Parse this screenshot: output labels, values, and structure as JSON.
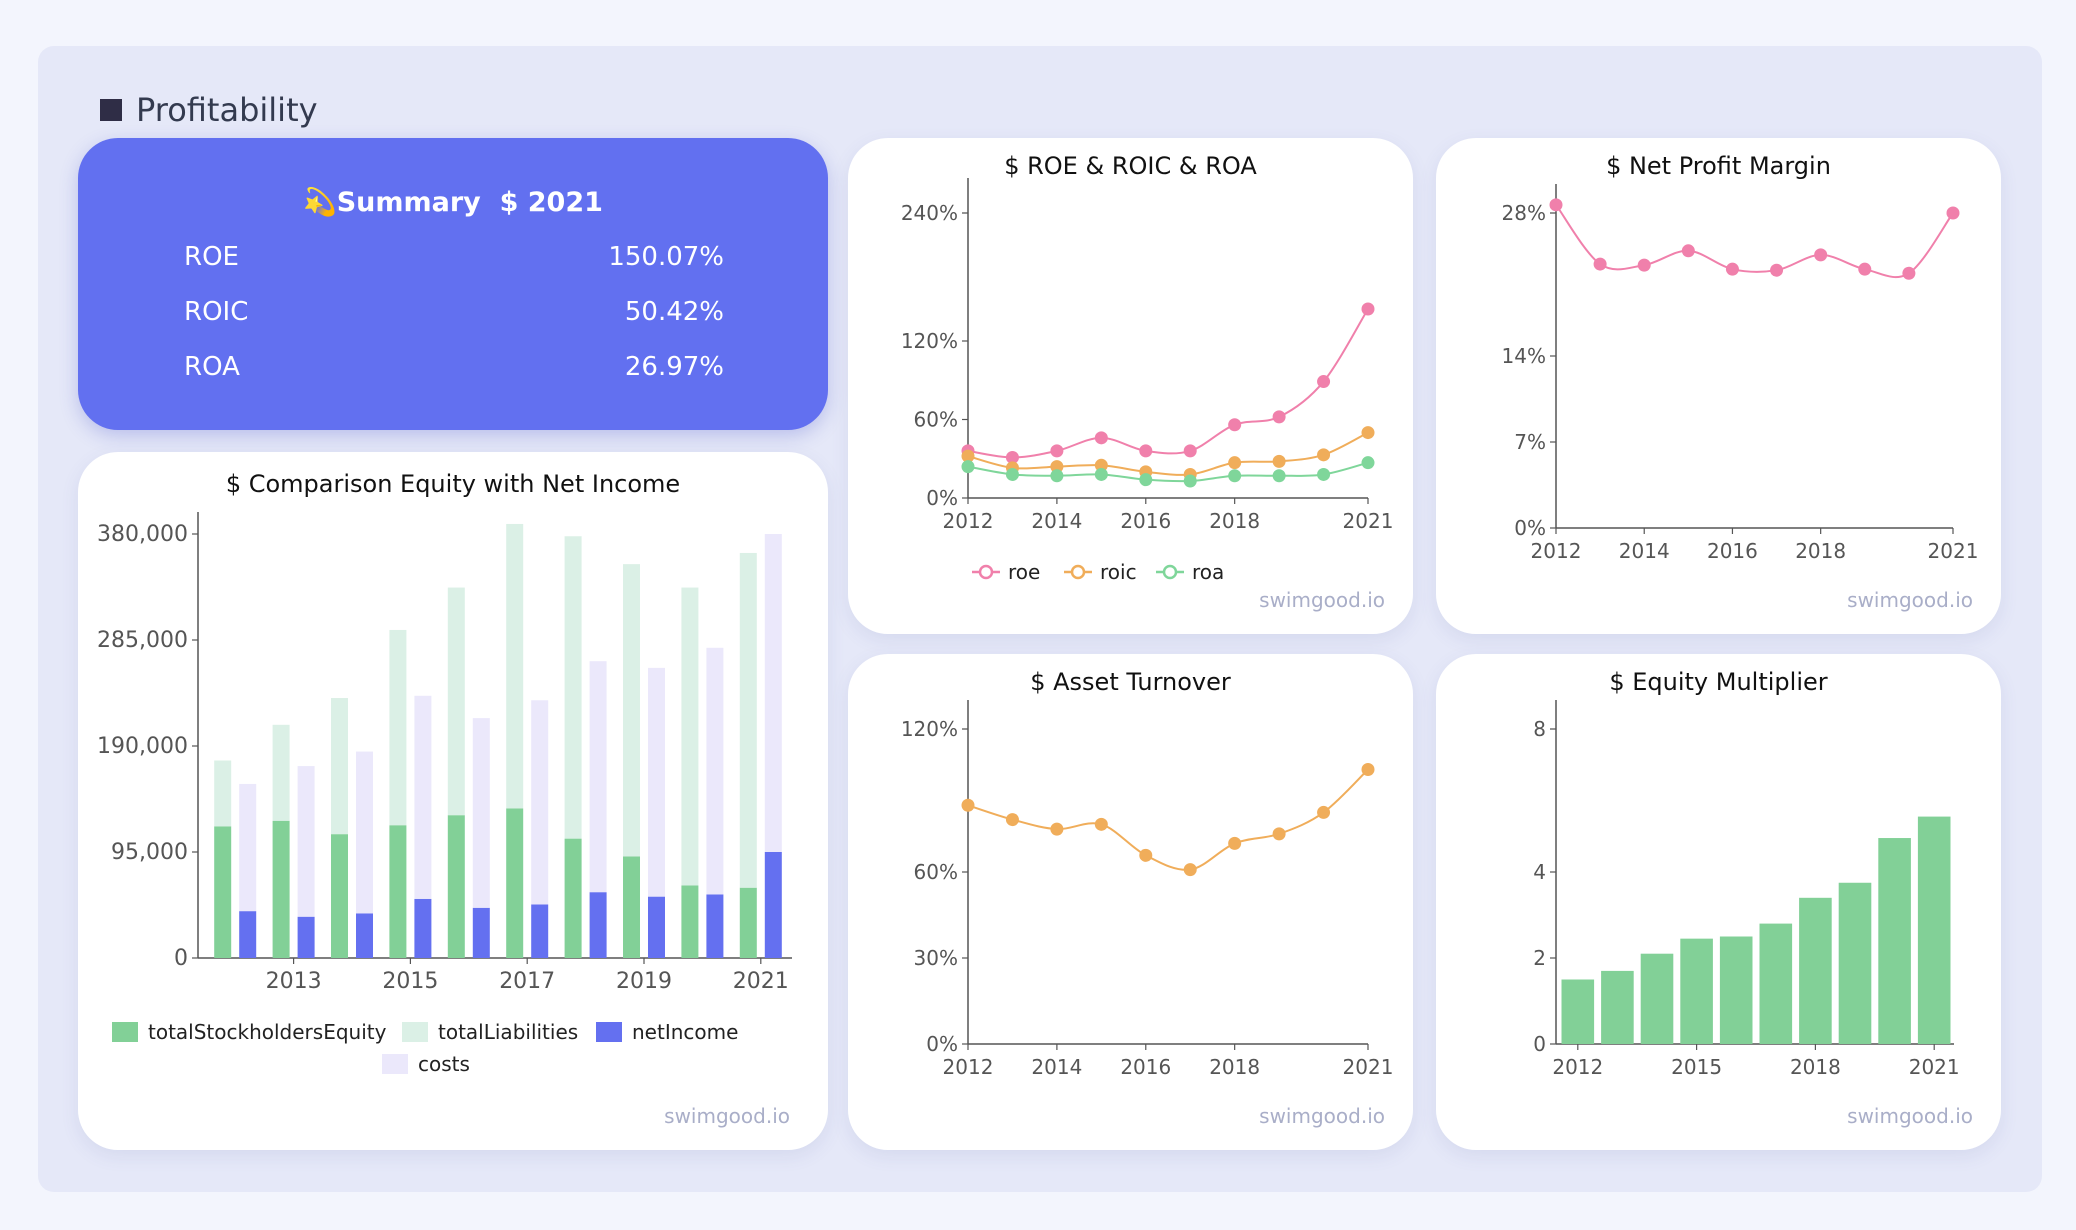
{
  "section": {
    "title": "Profitability"
  },
  "summary": {
    "icon": "💫",
    "title": "Summary",
    "year": "$ 2021",
    "rows": [
      {
        "label": "ROE",
        "value": "150.07%"
      },
      {
        "label": "ROIC",
        "value": "50.42%"
      },
      {
        "label": "ROA",
        "value": "26.97%"
      }
    ]
  },
  "watermark": "swimgood.io",
  "colors": {
    "equity": "#82d097",
    "liabilities": "#dbf0e6",
    "netIncome": "#6470f0",
    "costs": "#ebe8fb",
    "roe": "#f080ab",
    "roic": "#f0ad5a",
    "roa": "#7fd69a",
    "npm": "#f080ab",
    "turnover": "#f0ad5a",
    "multiplier": "#82d097"
  },
  "chart_data": [
    {
      "id": "comparison",
      "type": "bar",
      "title": "$ Comparison Equity with Net Income",
      "categories": [
        "2012",
        "2013",
        "2014",
        "2015",
        "2016",
        "2017",
        "2018",
        "2019",
        "2020",
        "2021"
      ],
      "xticks": [
        "2013",
        "2015",
        "2017",
        "2019",
        "2021"
      ],
      "yticks": [
        "0",
        "95,000",
        "190,000",
        "285,000",
        "380,000"
      ],
      "ylim": [
        0,
        380000
      ],
      "series": [
        {
          "name": "totalStockholdersEquity",
          "stack": "a",
          "values": [
            118000,
            123000,
            111000,
            119000,
            128000,
            134000,
            107000,
            91000,
            65000,
            63000
          ]
        },
        {
          "name": "totalLiabilities",
          "stack": "a",
          "values": [
            59000,
            86000,
            122000,
            175000,
            204000,
            255000,
            271000,
            262000,
            267000,
            300000
          ]
        },
        {
          "name": "netIncome",
          "stack": "b",
          "values": [
            42000,
            37000,
            40000,
            53000,
            45000,
            48000,
            59000,
            55000,
            57000,
            95000
          ]
        },
        {
          "name": "costs",
          "stack": "b",
          "values": [
            114000,
            135000,
            145000,
            182000,
            170000,
            183000,
            207000,
            205000,
            221000,
            285000
          ]
        }
      ],
      "legend": [
        "totalStockholdersEquity",
        "totalLiabilities",
        "netIncome",
        "costs"
      ]
    },
    {
      "id": "roe",
      "type": "line",
      "title": "$ ROE & ROIC & ROA",
      "x": [
        2012,
        2013,
        2014,
        2015,
        2016,
        2017,
        2018,
        2019,
        2020,
        2021
      ],
      "xticks": [
        "2012",
        "2014",
        "2016",
        "2018",
        "2021"
      ],
      "yticks": [
        "0%",
        "60%",
        "120%",
        "240%"
      ],
      "series": [
        {
          "name": "roe",
          "values": [
            36,
            31,
            36,
            46,
            36,
            36,
            56,
            62,
            89,
            150
          ]
        },
        {
          "name": "roic",
          "values": [
            32,
            23,
            24,
            25,
            20,
            18,
            27,
            28,
            33,
            50
          ]
        },
        {
          "name": "roa",
          "values": [
            24,
            18,
            17,
            18,
            14,
            13,
            17,
            17,
            18,
            27
          ]
        }
      ]
    },
    {
      "id": "npm",
      "type": "line",
      "title": "$ Net Profit Margin",
      "x": [
        2012,
        2013,
        2014,
        2015,
        2016,
        2017,
        2018,
        2019,
        2020,
        2021
      ],
      "xticks": [
        "2012",
        "2014",
        "2016",
        "2018",
        "2021"
      ],
      "yticks": [
        "0%",
        "7%",
        "14%",
        "28%"
      ],
      "series": [
        {
          "name": "netProfitMargin",
          "values": [
            28.8,
            23.0,
            22.9,
            24.3,
            22.5,
            22.4,
            23.9,
            22.5,
            22.1,
            28.0
          ]
        }
      ]
    },
    {
      "id": "turnover",
      "type": "line",
      "title": "$ Asset Turnover",
      "x": [
        2012,
        2013,
        2014,
        2015,
        2016,
        2017,
        2018,
        2019,
        2020,
        2021
      ],
      "xticks": [
        "2012",
        "2014",
        "2016",
        "2018",
        "2021"
      ],
      "yticks": [
        "0%",
        "30%",
        "60%",
        "120%"
      ],
      "series": [
        {
          "name": "assetTurnover",
          "values": [
            88,
            82,
            78,
            80,
            67,
            61,
            72,
            76,
            85,
            103
          ]
        }
      ]
    },
    {
      "id": "multiplier",
      "type": "bar",
      "title": "$ Equity Multiplier",
      "categories": [
        "2012",
        "2013",
        "2014",
        "2015",
        "2016",
        "2017",
        "2018",
        "2019",
        "2020",
        "2021"
      ],
      "xticks": [
        "2012",
        "2015",
        "2018",
        "2021"
      ],
      "yticks": [
        "0",
        "2",
        "4",
        "8"
      ],
      "series": [
        {
          "name": "equityMultiplier",
          "values": [
            1.5,
            1.7,
            2.1,
            2.45,
            2.5,
            2.8,
            3.4,
            3.75,
            4.95,
            5.55
          ]
        }
      ]
    }
  ]
}
